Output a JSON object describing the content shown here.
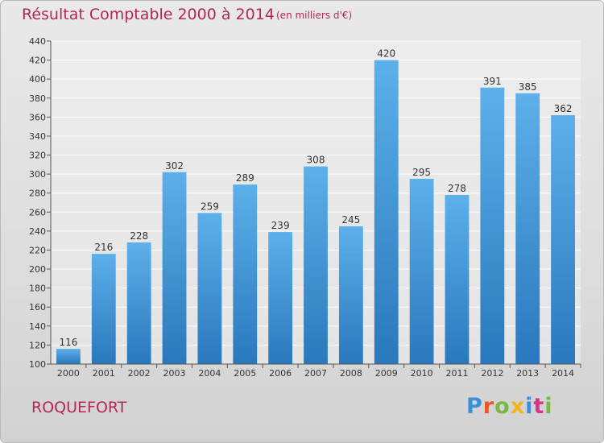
{
  "header": {
    "title": "Résultat Comptable 2000 à 2014",
    "subtitle": "(en milliers d'€)"
  },
  "footer": {
    "commune": "ROQUEFORT",
    "logo_text": "Proxiti",
    "logo_colors": [
      "#3a8fd6",
      "#e8562a",
      "#7ab648",
      "#f2b51c",
      "#3a8fd6",
      "#d9338a",
      "#7ab648"
    ]
  },
  "chart_data": {
    "type": "bar",
    "title": "Résultat Comptable 2000 à 2014",
    "subtitle": "(en milliers d'€)",
    "categories": [
      "2000",
      "2001",
      "2002",
      "2003",
      "2004",
      "2005",
      "2006",
      "2007",
      "2008",
      "2009",
      "2010",
      "2011",
      "2012",
      "2013",
      "2014"
    ],
    "values": [
      116,
      216,
      228,
      302,
      259,
      289,
      239,
      308,
      245,
      420,
      295,
      278,
      391,
      385,
      362
    ],
    "ylim": [
      100,
      440
    ],
    "yticks": [
      100,
      120,
      140,
      160,
      180,
      200,
      220,
      240,
      260,
      280,
      300,
      320,
      340,
      360,
      380,
      400,
      420,
      440
    ],
    "grid": true,
    "bar_color_top": "#5db0ea",
    "bar_color_bottom": "#2a78bd",
    "xlabel": "",
    "ylabel": ""
  }
}
